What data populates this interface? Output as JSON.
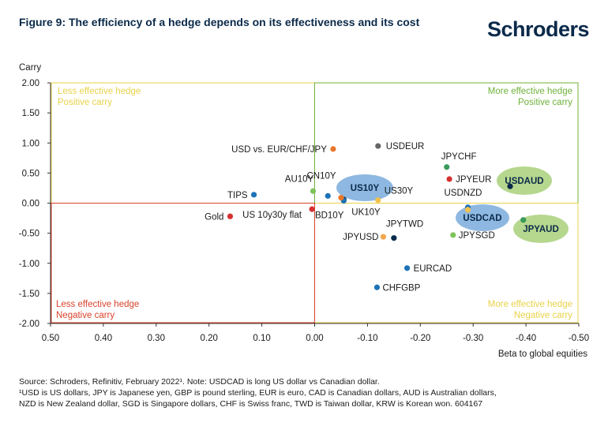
{
  "title": "Figure 9: The efficiency of a hedge depends on its effectiveness and its cost",
  "brand": "Schroders",
  "footnotes": {
    "source": "Source: Schroders, Refinitiv, February 2022¹. Note: USDCAD is long US dollar vs Canadian dollar.",
    "line2": "¹USD is US dollars, JPY is Japanese yen, GBP is pound sterling, EUR is euro, CAD is Canadian dollars, AUD is Australian dollars,",
    "line3": "NZD is New Zealand dollar, SGD is Singapore dollars, CHF is Swiss franc, TWD is Taiwan dollar, KRW is Korean won. 604167"
  },
  "chart_data": {
    "type": "scatter",
    "xlabel": "Beta to global equities",
    "ylabel": "Carry",
    "xlim": [
      0.5,
      -0.5
    ],
    "ylim": [
      -2.0,
      2.0
    ],
    "x_reversed": true,
    "x_ticks": [
      "0.50",
      "0.40",
      "0.30",
      "0.20",
      "0.10",
      "0.00",
      "-0.10",
      "-0.20",
      "-0.30",
      "-0.40",
      "-0.50"
    ],
    "y_ticks": [
      "2.00",
      "1.50",
      "1.00",
      "0.50",
      "0.00",
      "-0.50",
      "-1.00",
      "-1.50",
      "-2.00"
    ],
    "quadrants": [
      {
        "line1": "Less effective hedge",
        "line2": "Positive carry",
        "color": "#e8d24a",
        "position": "top-left"
      },
      {
        "line1": "More effective hedge",
        "line2": "Positive carry",
        "color": "#6fb23a",
        "position": "top-right"
      },
      {
        "line1": "Less effective hedge",
        "line2": "Negative carry",
        "color": "#d9432b",
        "position": "bottom-left"
      },
      {
        "line1": "More effective hedge",
        "line2": "Negative carry",
        "color": "#e8d24a",
        "position": "bottom-right"
      }
    ],
    "points": [
      {
        "label": "USD vs. EUR/CHF/JPY",
        "x": -0.035,
        "y": 0.9,
        "color": "#e8772e"
      },
      {
        "label": "USDEUR",
        "x": -0.12,
        "y": 0.95,
        "color": "#666666"
      },
      {
        "label": "JPYCHF",
        "x": -0.25,
        "y": 0.6,
        "color": "#3a9a5a"
      },
      {
        "label": "JPYEUR",
        "x": -0.255,
        "y": 0.4,
        "color": "#d63030"
      },
      {
        "label": "USDAUD",
        "x": -0.37,
        "y": 0.28,
        "color": "#0b2a4a",
        "bold": true,
        "highlight": "#a9d07a"
      },
      {
        "label": "CN10Y",
        "x": 0.003,
        "y": 0.2,
        "color": "#7ec25a"
      },
      {
        "label": "AU10Y",
        "x": -0.025,
        "y": 0.12,
        "color": "#1e73b8"
      },
      {
        "label": "US10Y",
        "x": -0.055,
        "y": 0.06,
        "color": "#0b2a4a",
        "bold": true,
        "highlight": "#7aacdc"
      },
      {
        "label": "US30Y",
        "x": -0.12,
        "y": 0.05,
        "color": "#f2c14e"
      },
      {
        "label": "TIPS",
        "x": 0.115,
        "y": 0.14,
        "color": "#1e73b8"
      },
      {
        "label": "USDNZD",
        "x": -0.29,
        "y": -0.07,
        "color": "#1e73b8"
      },
      {
        "label": "USDCAD",
        "x": -0.29,
        "y": -0.11,
        "color": "#f2c14e",
        "bold": true,
        "highlight": "#7aacdc"
      },
      {
        "label": "JPYAUD",
        "x": -0.395,
        "y": -0.28,
        "color": "#3a9a5a",
        "bold": true,
        "highlight": "#a9d07a"
      },
      {
        "label": "Gold",
        "x": 0.16,
        "y": -0.22,
        "color": "#d63030"
      },
      {
        "label": "US 10y30y flat",
        "x": 0.005,
        "y": -0.1,
        "color": "#d63030"
      },
      {
        "label": "UK10Y",
        "x": -0.055,
        "y": 0.04,
        "color": "#1e73b8"
      },
      {
        "label": "BD10Y",
        "x": -0.05,
        "y": 0.09,
        "color": "#e8772e"
      },
      {
        "label": "JPYTWD",
        "x": -0.15,
        "y": -0.58,
        "color": "#0b2a4a"
      },
      {
        "label": "JPYUSD",
        "x": -0.13,
        "y": -0.56,
        "color": "#f2a64e"
      },
      {
        "label": "JPYSGD",
        "x": -0.262,
        "y": -0.53,
        "color": "#7ec25a"
      },
      {
        "label": "EURCAD",
        "x": -0.175,
        "y": -1.08,
        "color": "#1e73b8"
      },
      {
        "label": "CHFGBP",
        "x": -0.118,
        "y": -1.4,
        "color": "#1e73b8"
      }
    ]
  }
}
